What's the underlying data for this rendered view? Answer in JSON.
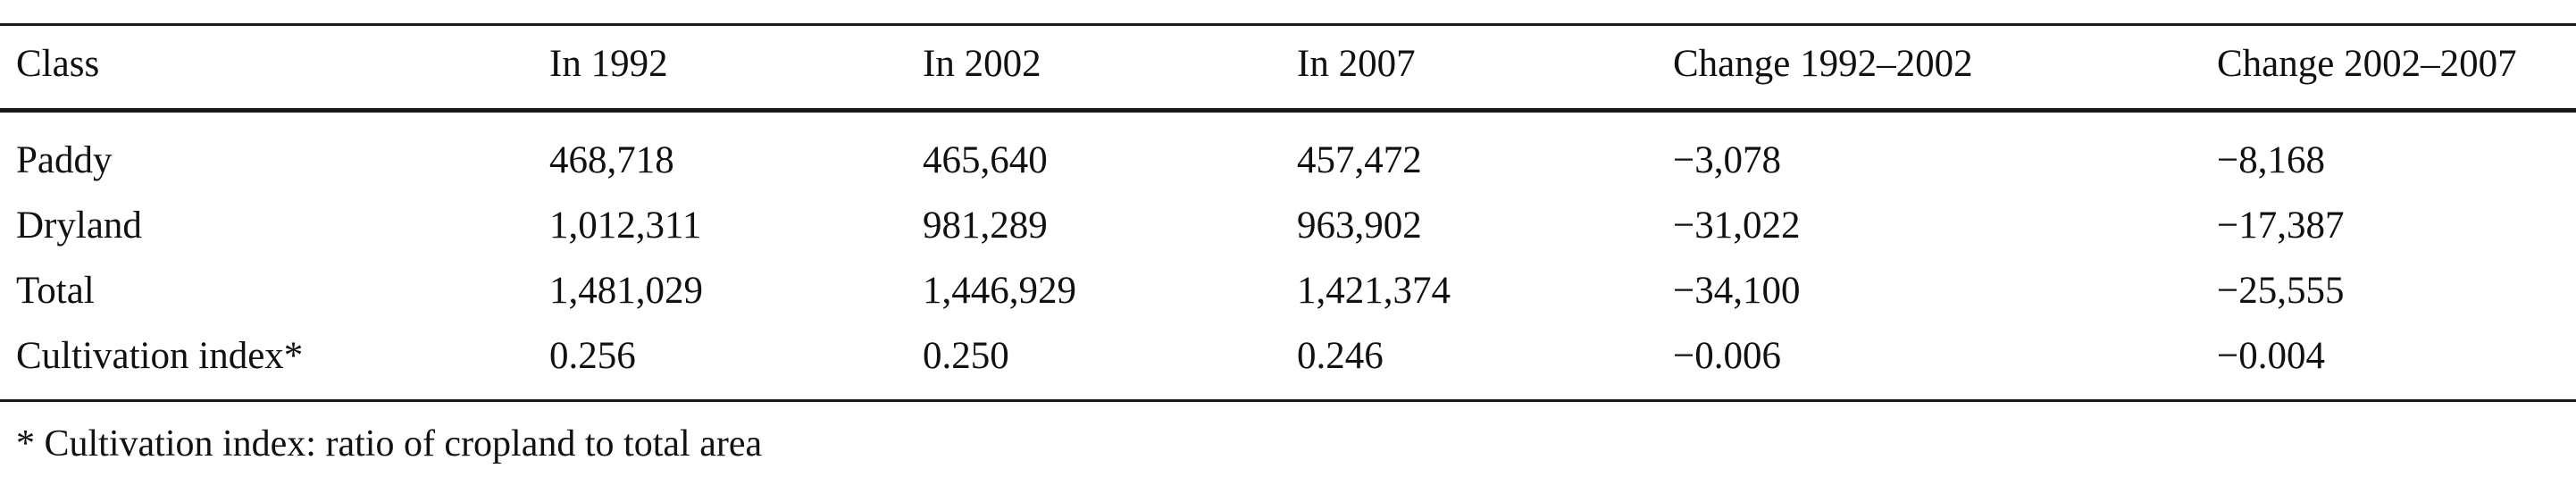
{
  "table": {
    "headers": [
      "Class",
      "In 1992",
      "In 2002",
      "In 2007",
      "Change 1992–2002",
      "Change 2002–2007"
    ],
    "rows": [
      [
        "Paddy",
        "468,718",
        "465,640",
        "457,472",
        "−3,078",
        "−8,168"
      ],
      [
        "Dryland",
        "1,012,311",
        "981,289",
        "963,902",
        "−31,022",
        "−17,387"
      ],
      [
        "Total",
        "1,481,029",
        "1,446,929",
        "1,421,374",
        "−34,100",
        "−25,555"
      ],
      [
        "Cultivation index*",
        "0.256",
        "0.250",
        "0.246",
        "−0.006",
        "−0.004"
      ]
    ]
  },
  "footnote": "* Cultivation index: ratio of cropland to total area"
}
